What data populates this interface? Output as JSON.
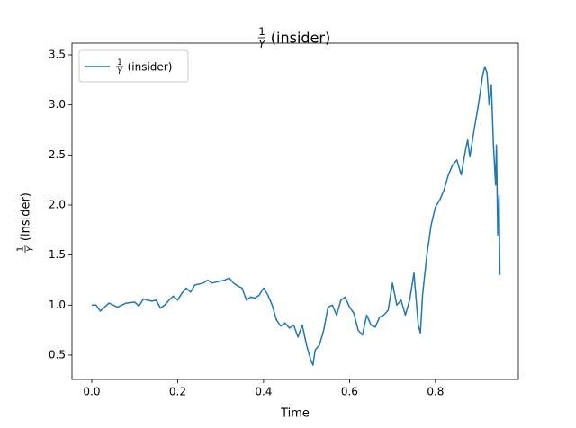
{
  "chart_data": {
    "type": "line",
    "title": {
      "numerator": "1",
      "denominator": "Y",
      "suffix": "(insider)"
    },
    "xlabel": "Time",
    "ylabel": {
      "numerator": "1",
      "denominator": "Y",
      "suffix": "(insider)"
    },
    "x": [
      0,
      0.01,
      0.02,
      0.03,
      0.04,
      0.05,
      0.06,
      0.08,
      0.1,
      0.11,
      0.12,
      0.14,
      0.15,
      0.16,
      0.17,
      0.18,
      0.19,
      0.2,
      0.21,
      0.22,
      0.23,
      0.24,
      0.26,
      0.27,
      0.28,
      0.3,
      0.31,
      0.32,
      0.33,
      0.34,
      0.35,
      0.36,
      0.37,
      0.38,
      0.39,
      0.4,
      0.41,
      0.42,
      0.43,
      0.44,
      0.45,
      0.46,
      0.47,
      0.48,
      0.49,
      0.5,
      0.51,
      0.515,
      0.52,
      0.53,
      0.54,
      0.55,
      0.56,
      0.57,
      0.58,
      0.59,
      0.6,
      0.61,
      0.62,
      0.63,
      0.64,
      0.65,
      0.66,
      0.67,
      0.68,
      0.69,
      0.7,
      0.71,
      0.72,
      0.73,
      0.74,
      0.75,
      0.76,
      0.765,
      0.77,
      0.78,
      0.79,
      0.8,
      0.81,
      0.82,
      0.83,
      0.84,
      0.85,
      0.86,
      0.87,
      0.875,
      0.88,
      0.89,
      0.9,
      0.91,
      0.915,
      0.92,
      0.925,
      0.93,
      0.935,
      0.94,
      0.942,
      0.945,
      0.948,
      0.95
    ],
    "series": [
      {
        "name": {
          "numerator": "1",
          "denominator": "Y",
          "suffix": "(insider)"
        },
        "color": "#1f77b4",
        "values": [
          1.0,
          1.0,
          0.94,
          0.98,
          1.02,
          1.0,
          0.98,
          1.02,
          1.03,
          0.99,
          1.06,
          1.04,
          1.05,
          0.97,
          1.0,
          1.05,
          1.09,
          1.05,
          1.12,
          1.17,
          1.13,
          1.2,
          1.22,
          1.25,
          1.22,
          1.24,
          1.25,
          1.27,
          1.22,
          1.19,
          1.17,
          1.05,
          1.08,
          1.07,
          1.1,
          1.17,
          1.1,
          1.0,
          0.85,
          0.79,
          0.82,
          0.77,
          0.8,
          0.68,
          0.8,
          0.6,
          0.45,
          0.4,
          0.55,
          0.6,
          0.75,
          0.98,
          1.0,
          0.9,
          1.05,
          1.08,
          0.98,
          0.92,
          0.75,
          0.7,
          0.9,
          0.8,
          0.78,
          0.88,
          0.9,
          0.95,
          1.22,
          1.0,
          1.05,
          0.9,
          1.05,
          1.32,
          0.8,
          0.72,
          1.1,
          1.5,
          1.8,
          1.98,
          2.05,
          2.15,
          2.3,
          2.4,
          2.45,
          2.3,
          2.55,
          2.65,
          2.48,
          2.75,
          3.0,
          3.3,
          3.38,
          3.32,
          3.0,
          3.2,
          2.6,
          2.2,
          2.6,
          1.7,
          2.1,
          1.3
        ]
      }
    ],
    "xlim": [
      -0.046,
      0.993
    ],
    "ylim": [
      0.257,
      3.617
    ],
    "xticks": [
      {
        "value": 0,
        "label": "0.0"
      },
      0.2,
      0.4,
      0.6,
      0.8
    ],
    "yticks": [
      0.5,
      {
        "value": 1,
        "label": "1.0"
      },
      1.5,
      {
        "value": 2,
        "label": "2.0"
      },
      2.5,
      {
        "value": 3,
        "label": "3.0"
      },
      3.5
    ],
    "legend": "upper left"
  }
}
